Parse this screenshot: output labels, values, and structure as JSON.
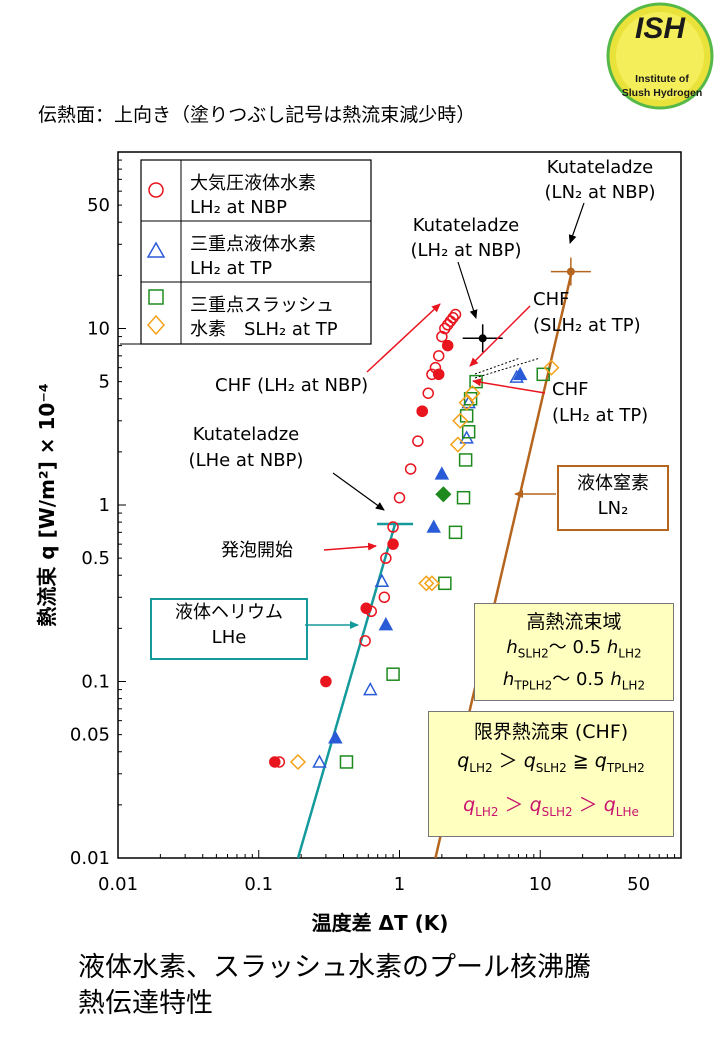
{
  "logo": {
    "text": "ISH",
    "caption_line1": "Institute of",
    "caption_line2": "Slush Hydrogen"
  },
  "subtitle": "伝熱面：上向き（塗りつぶし記号は熱流束減少時）",
  "footer": {
    "line1": "液体水素、スラッシュ水素のプール核沸騰",
    "line2": "熱伝達特性"
  },
  "colors": {
    "lh2_nbp": "#e8141e",
    "lh2_tp": "#2a5bd7",
    "slh2_square": "#1e8a1e",
    "slh2_diamond": "#f4a21a",
    "lhe": "#159a9c",
    "ln2": "#b5651d",
    "callout": "#e8141e",
    "box_fill": "#ffffc0"
  },
  "chart_data": {
    "type": "scatter",
    "xscale": "log",
    "yscale": "log",
    "xlim": [
      0.01,
      100
    ],
    "ylim": [
      0.01,
      100
    ],
    "xlabel": "温度差 ΔT (K)",
    "ylabel": "熱流束 q [W/m²] × 10⁻⁴",
    "xticks": [
      "0.01",
      "0.1",
      "1",
      "10",
      "50"
    ],
    "yticks": [
      "0.01",
      "0.05",
      "0.1",
      "0.5",
      "1",
      "5",
      "10",
      "50"
    ],
    "legend": [
      {
        "line1": "大気圧液体水素",
        "line2": "LH₂ at NBP",
        "marker": "circle",
        "color": "#e8141e"
      },
      {
        "line1": "三重点液体水素",
        "line2": "LH₂ at TP",
        "marker": "triangle",
        "color": "#2a5bd7"
      },
      {
        "line1": "三重点スラッシュ",
        "line2": "水素　SLH₂ at TP",
        "marker": "square+diamond",
        "color": "#1e8a1e"
      }
    ],
    "series": [
      {
        "name": "大気圧液体水素 LH₂ at NBP",
        "marker": "circle",
        "filled": false,
        "color": "#e8141e",
        "x": [
          0.14,
          0.57,
          0.63,
          0.78,
          0.8,
          0.9,
          1.0,
          1.2,
          1.35,
          1.45,
          1.6,
          1.7,
          1.8,
          1.9,
          2.0,
          2.1,
          2.2,
          2.3,
          2.4,
          2.5
        ],
        "y": [
          0.035,
          0.17,
          0.25,
          0.3,
          0.5,
          0.75,
          1.1,
          1.6,
          2.3,
          3.4,
          4.3,
          5.5,
          6.0,
          7.0,
          9.0,
          10.0,
          10.5,
          11.0,
          11.5,
          12.0
        ]
      },
      {
        "name": "大気圧液体水素 LH₂ at NBP (熱流束減少時)",
        "marker": "circle",
        "filled": true,
        "color": "#e8141e",
        "x": [
          0.13,
          0.3,
          0.58,
          0.9,
          1.45,
          1.9,
          2.2
        ],
        "y": [
          0.035,
          0.1,
          0.26,
          0.6,
          3.4,
          5.5,
          8.0
        ]
      },
      {
        "name": "三重点液体水素 LH₂ at TP",
        "marker": "triangle",
        "filled": false,
        "color": "#2a5bd7",
        "x": [
          0.27,
          0.62,
          0.75,
          3.0,
          3.1,
          6.8
        ],
        "y": [
          0.035,
          0.09,
          0.37,
          2.4,
          3.8,
          5.3
        ]
      },
      {
        "name": "三重点液体水素 LH₂ at TP (熱流束減少時)",
        "marker": "triangle",
        "filled": true,
        "color": "#2a5bd7",
        "x": [
          0.35,
          0.8,
          1.75,
          2.0,
          7.2
        ],
        "y": [
          0.048,
          0.21,
          0.75,
          1.5,
          5.5
        ]
      },
      {
        "name": "三重点スラッシュ水素 SLH₂ at TP (□)",
        "marker": "square",
        "filled": false,
        "color": "#1e8a1e",
        "x": [
          0.42,
          0.9,
          2.1,
          2.5,
          2.85,
          2.95,
          3.1,
          3.2,
          3.5,
          3.0,
          10.5
        ],
        "y": [
          0.035,
          0.11,
          0.36,
          0.7,
          1.1,
          1.8,
          2.6,
          4.0,
          5.0,
          3.2,
          5.5
        ]
      },
      {
        "name": "三重点スラッシュ水素 SLH₂ at TP (◇)",
        "marker": "diamond",
        "filled": false,
        "color": "#f4a21a",
        "x": [
          0.19,
          1.55,
          1.7,
          2.6,
          2.7,
          3.0,
          3.3,
          12.0
        ],
        "y": [
          0.035,
          0.36,
          0.36,
          2.2,
          3.0,
          3.8,
          4.3,
          6.0
        ]
      },
      {
        "name": "三重点スラッシュ水素 SLH₂ at TP (◆ 熱流束減少時)",
        "marker": "diamond",
        "filled": true,
        "color": "#1e8a1e",
        "x": [
          2.05
        ],
        "y": [
          1.15
        ]
      }
    ],
    "lines": [
      {
        "name": "液体ヘリウム LHe",
        "color": "#159a9c",
        "x": [
          0.19,
          0.93
        ],
        "y": [
          0.01,
          0.78
        ]
      },
      {
        "name": "液体窒素 LN₂",
        "color": "#b5651d",
        "x": [
          1.8,
          16.5
        ],
        "y": [
          0.01,
          20.0
        ]
      }
    ],
    "kutateladze_points": [
      {
        "label_line1": "Kutateladze",
        "label_line2": "(LHe at NBP)",
        "x": 0.93,
        "y": 0.78,
        "color": "#159a9c"
      },
      {
        "label_line1": "Kutateladze",
        "label_line2": "(LH₂ at NBP)",
        "x": 3.9,
        "y": 8.8,
        "color": "#000000"
      },
      {
        "label_line1": "Kutateladze",
        "label_line2": "(LN₂ at NBP)",
        "x": 16.5,
        "y": 21.0,
        "color": "#b5651d"
      }
    ],
    "annotations": {
      "chf_lh2_nbp": "CHF (LH₂ at NBP)",
      "chf_slh2_line1": "CHF",
      "chf_slh2_line2": "(SLH₂ at TP)",
      "chf_lh2_tp_line1": "CHF",
      "chf_lh2_tp_line2": "(LH₂ at TP)",
      "bubble_onset": "発泡開始",
      "lhe_line1": "液体ヘリウム",
      "lhe_line2": "LHe",
      "ln2_line1": "液体窒素",
      "ln2_line2": "LN₂"
    },
    "high_flux_box": {
      "title": "高熱流束域",
      "line1": "hSLH2〜 0.5 hLH2",
      "line2": "hTPLH2〜 0.5 hLH2"
    },
    "chf_box": {
      "title": "限界熱流束 (CHF)",
      "line1": "qLH2 ＞ qSLH2 ≧ qTPLH2",
      "line2": "qLH2 ＞ qSLH2 ＞ qLHe"
    }
  }
}
